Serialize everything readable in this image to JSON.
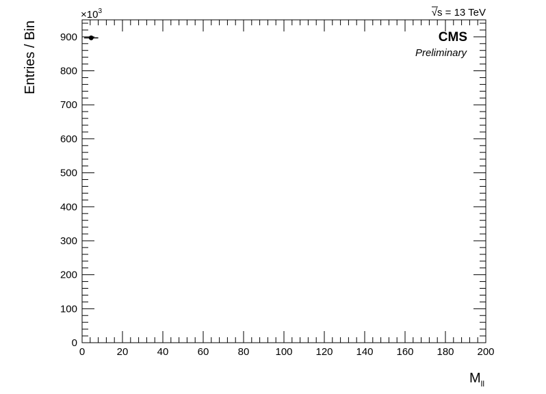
{
  "chart_data": {
    "type": "scatter",
    "xlabel": "M",
    "xlabel_subscript": "ll",
    "ylabel": "Entries / Bin",
    "y_multiplier": "×10",
    "y_multiplier_exponent": "3",
    "xlim": [
      0,
      200
    ],
    "ylim": [
      0,
      950
    ],
    "x_ticks": [
      0,
      20,
      40,
      60,
      80,
      100,
      120,
      140,
      160,
      180,
      200
    ],
    "y_ticks": [
      0,
      100,
      200,
      300,
      400,
      500,
      600,
      700,
      800,
      900
    ],
    "x_minor_step": 4,
    "y_minor_step": 20,
    "grid": false,
    "points": [
      {
        "x": 4.5,
        "y": 897,
        "x_err": 3.5,
        "y_err": 1
      }
    ]
  },
  "annotations": {
    "energy_sqrt_symbol": "√",
    "energy_s": "s",
    "energy_text": " = 13 TeV",
    "experiment": "CMS",
    "status": "Preliminary"
  }
}
